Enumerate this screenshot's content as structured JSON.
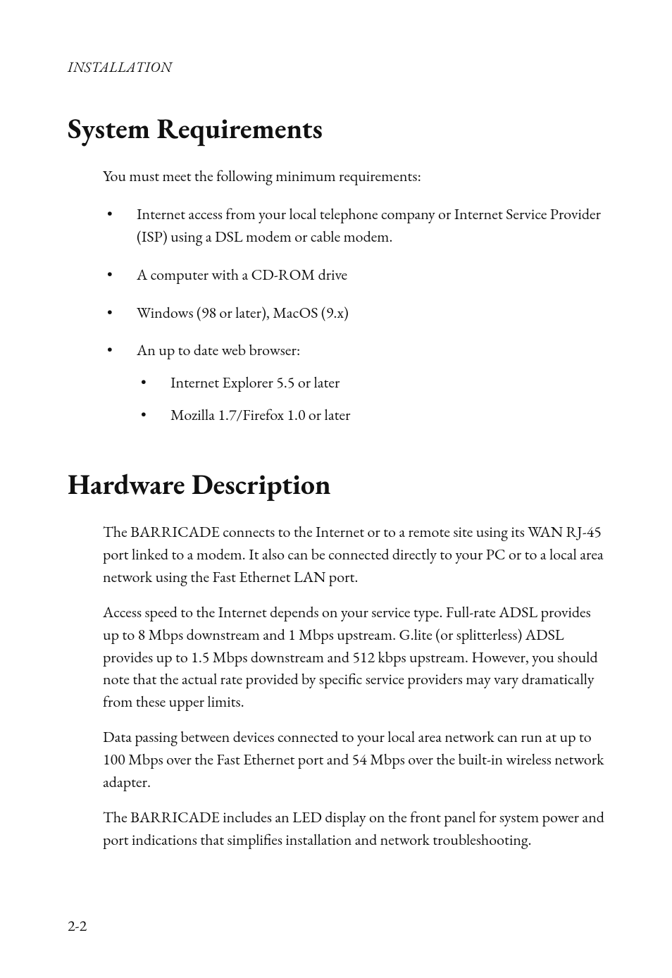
{
  "page": {
    "running_head": "INSTALLATION",
    "page_number": "2-2"
  },
  "sections": [
    {
      "heading": "System Requirements",
      "intro": "You must meet the following minimum requirements:",
      "bullets": [
        {
          "text": "Internet access from your local telephone company or Internet Service Provider (ISP) using a DSL modem or cable modem."
        },
        {
          "text": "A computer with a CD-ROM drive"
        },
        {
          "text": "Windows (98 or later), MacOS (9.x)"
        },
        {
          "text": "An up to date web browser:",
          "sub": [
            "Internet Explorer 5.5 or later",
            "Mozilla 1.7/Firefox 1.0 or later"
          ]
        }
      ]
    },
    {
      "heading": "Hardware Description",
      "paragraphs": [
        "The BARRICADE connects to the Internet or to a remote site using its WAN RJ-45 port linked to a modem. It also can be connected directly to your PC or to a local area network using the Fast Ethernet LAN port.",
        "Access speed to the Internet depends on your service type. Full-rate ADSL provides up to 8 Mbps downstream and 1 Mbps upstream. G.lite (or splitterless) ADSL provides up to 1.5 Mbps downstream and 512 kbps upstream. However, you should note that the actual rate provided by specific service providers may vary dramatically from these upper limits.",
        "Data passing between devices connected to your local area network can run at up to 100 Mbps over the Fast Ethernet port and 54 Mbps over the built-in wireless network adapter.",
        "The BARRICADE includes an LED display on the front panel for system power and port indications that simplifies installation and network troubleshooting."
      ]
    }
  ]
}
